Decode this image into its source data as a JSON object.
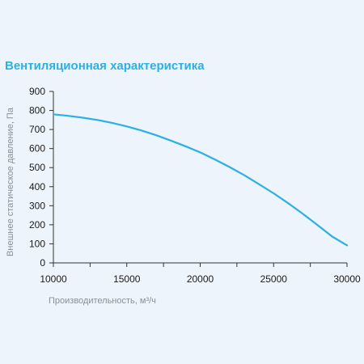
{
  "chart_data": {
    "type": "line",
    "title": "Вентиляционная характеристика",
    "xlabel": "Производительность, м³/ч",
    "ylabel": "Внешнее статическое давление, Па",
    "xlim": [
      10000,
      30000
    ],
    "ylim": [
      0,
      900
    ],
    "x_ticks": [
      "10000",
      "15000",
      "20000",
      "25000",
      "30000"
    ],
    "y_ticks": [
      "0",
      "100",
      "200",
      "300",
      "400",
      "500",
      "600",
      "700",
      "800",
      "900"
    ],
    "grid": false,
    "series": [
      {
        "x": [
          10000,
          11000,
          12000,
          13000,
          14000,
          15000,
          16000,
          17000,
          18000,
          19000,
          20000,
          21000,
          22000,
          23000,
          24000,
          25000,
          26000,
          27000,
          28000,
          29000,
          30000
        ],
        "values": [
          780,
          772,
          762,
          750,
          735,
          716,
          695,
          670,
          642,
          612,
          580,
          543,
          503,
          460,
          413,
          365,
          313,
          257,
          198,
          138,
          92
        ]
      }
    ]
  },
  "colors": {
    "background": "#eef4fb",
    "title": "#2ab0e6",
    "line": "#2ab0e6",
    "axis": "#333333"
  }
}
